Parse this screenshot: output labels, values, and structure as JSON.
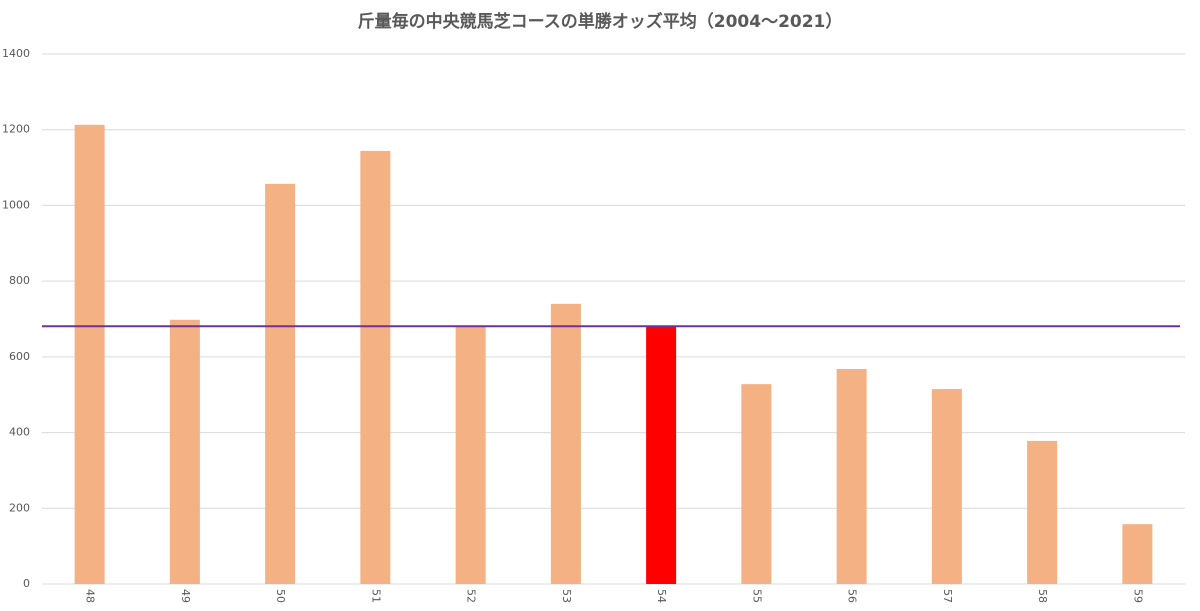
{
  "chart_data": {
    "type": "bar",
    "title": "斤量毎の中央競馬芝コースの単勝オッズ平均（2004～2021）",
    "categories": [
      "48",
      "49",
      "50",
      "51",
      "52",
      "53",
      "54",
      "55",
      "56",
      "57",
      "58",
      "59"
    ],
    "values": [
      1213,
      698,
      1057,
      1144,
      681,
      740,
      681,
      528,
      568,
      515,
      378,
      158
    ],
    "colors": [
      "#f4b183",
      "#f4b183",
      "#f4b183",
      "#f4b183",
      "#f4b183",
      "#f4b183",
      "#ff0000",
      "#f4b183",
      "#f4b183",
      "#f4b183",
      "#f4b183",
      "#f4b183"
    ],
    "average_line": {
      "value": 681,
      "color": "#7030a0"
    },
    "ylim": [
      0,
      1400
    ],
    "yticks": [
      0,
      200,
      400,
      600,
      800,
      1000,
      1200,
      1400
    ],
    "grid": true
  }
}
